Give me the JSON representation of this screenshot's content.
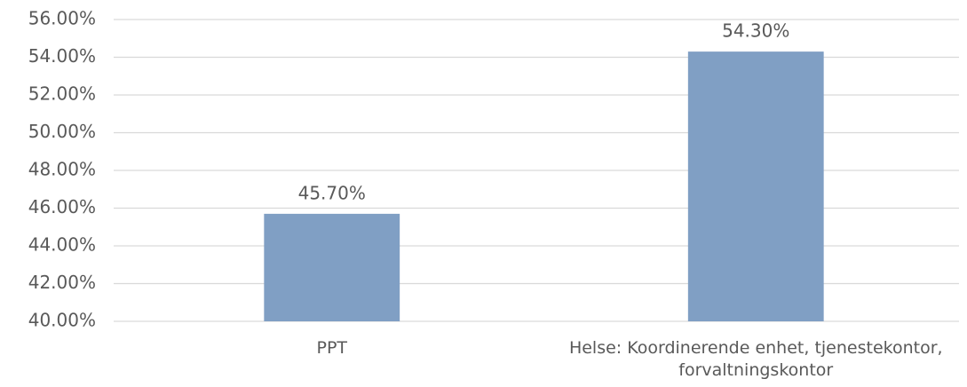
{
  "chart_data": {
    "type": "bar",
    "categories": [
      "PPT",
      "Helse: Koordinerende enhet, tjenestekontor, forvaltningskontor"
    ],
    "values": [
      45.7,
      54.3
    ],
    "value_labels": [
      "45.70%",
      "54.30%"
    ],
    "color": "#809fc4",
    "ylim": [
      40,
      56
    ],
    "yticks": [
      {
        "value": 40,
        "label": "40.00%"
      },
      {
        "value": 42,
        "label": "42.00%"
      },
      {
        "value": 44,
        "label": "44.00%"
      },
      {
        "value": 46,
        "label": "46.00%"
      },
      {
        "value": 48,
        "label": "48.00%"
      },
      {
        "value": 50,
        "label": "50.00%"
      },
      {
        "value": 52,
        "label": "52.00%"
      },
      {
        "value": 54,
        "label": "54.00%"
      },
      {
        "value": 56,
        "label": "56.00%"
      }
    ],
    "grid": true
  }
}
